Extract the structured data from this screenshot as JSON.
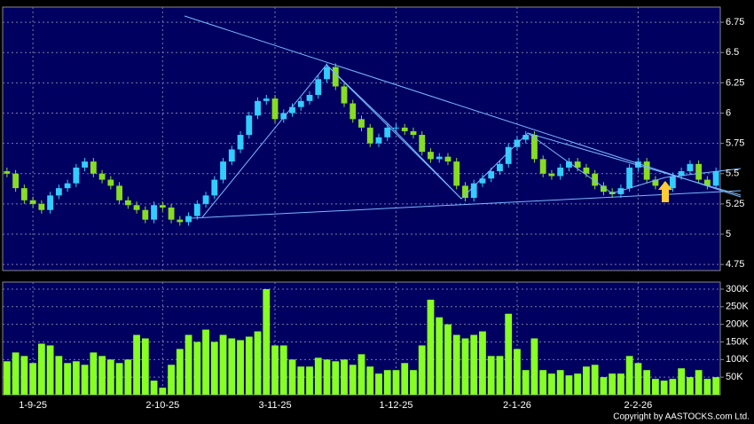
{
  "chart_data": [
    {
      "type": "candlestick",
      "up_color": "#33ccff",
      "down_color": "#88dd22",
      "grid": true,
      "open": [
        5.52,
        5.5,
        5.38,
        5.28,
        5.25,
        5.2,
        5.32,
        5.38,
        5.42,
        5.55,
        5.6,
        5.5,
        5.45,
        5.4,
        5.28,
        5.24,
        5.2,
        5.12,
        5.24,
        5.22,
        5.12,
        5.1,
        5.15,
        5.25,
        5.32,
        5.45,
        5.6,
        5.7,
        5.82,
        5.98,
        6.1,
        6.12,
        5.95,
        6.0,
        6.05,
        6.1,
        6.15,
        6.28,
        6.38,
        6.22,
        6.08,
        5.95,
        5.88,
        5.75,
        5.8,
        5.88,
        5.88,
        5.85,
        5.82,
        5.68,
        5.62,
        5.64,
        5.6,
        5.4,
        5.3,
        5.42,
        5.46,
        5.52,
        5.58,
        5.72,
        5.78,
        5.82,
        5.62,
        5.5,
        5.48,
        5.55,
        5.6,
        5.55,
        5.5,
        5.4,
        5.35,
        5.33,
        5.38,
        5.55,
        5.6,
        5.45,
        5.4,
        5.38,
        5.48,
        5.52,
        5.58,
        5.45,
        5.4
      ],
      "high": [
        5.55,
        5.53,
        5.41,
        5.31,
        5.28,
        5.35,
        5.41,
        5.45,
        5.58,
        5.63,
        5.63,
        5.53,
        5.48,
        5.43,
        5.31,
        5.27,
        5.23,
        5.27,
        5.27,
        5.25,
        5.15,
        5.18,
        5.28,
        5.35,
        5.48,
        5.63,
        5.73,
        5.85,
        6.01,
        6.13,
        6.15,
        6.15,
        6.03,
        6.08,
        6.13,
        6.18,
        6.31,
        6.41,
        6.41,
        6.25,
        6.11,
        5.98,
        5.91,
        5.83,
        5.91,
        5.91,
        5.91,
        5.88,
        5.85,
        5.71,
        5.67,
        5.67,
        5.63,
        5.43,
        5.45,
        5.49,
        5.55,
        5.61,
        5.75,
        5.81,
        5.85,
        5.85,
        5.65,
        5.53,
        5.58,
        5.63,
        5.63,
        5.58,
        5.53,
        5.43,
        5.38,
        5.41,
        5.58,
        5.63,
        5.63,
        5.48,
        5.43,
        5.51,
        5.55,
        5.61,
        5.61,
        5.48,
        5.55
      ],
      "low": [
        5.47,
        5.35,
        5.25,
        5.22,
        5.17,
        5.17,
        5.29,
        5.35,
        5.39,
        5.52,
        5.47,
        5.42,
        5.37,
        5.25,
        5.21,
        5.17,
        5.09,
        5.09,
        5.19,
        5.09,
        5.07,
        5.07,
        5.12,
        5.22,
        5.29,
        5.42,
        5.57,
        5.67,
        5.79,
        5.95,
        6.07,
        5.92,
        5.92,
        5.97,
        6.02,
        6.07,
        6.12,
        6.25,
        6.19,
        6.05,
        5.92,
        5.85,
        5.72,
        5.72,
        5.77,
        5.85,
        5.82,
        5.79,
        5.65,
        5.59,
        5.59,
        5.57,
        5.37,
        5.27,
        5.27,
        5.39,
        5.43,
        5.49,
        5.55,
        5.69,
        5.75,
        5.59,
        5.47,
        5.45,
        5.45,
        5.52,
        5.52,
        5.47,
        5.37,
        5.32,
        5.3,
        5.3,
        5.35,
        5.52,
        5.42,
        5.37,
        5.35,
        5.35,
        5.45,
        5.49,
        5.42,
        5.37,
        5.37
      ],
      "close": [
        5.5,
        5.38,
        5.28,
        5.25,
        5.2,
        5.32,
        5.38,
        5.42,
        5.55,
        5.6,
        5.5,
        5.45,
        5.4,
        5.28,
        5.24,
        5.2,
        5.12,
        5.24,
        5.22,
        5.12,
        5.1,
        5.15,
        5.25,
        5.32,
        5.45,
        5.6,
        5.7,
        5.82,
        5.98,
        6.1,
        6.12,
        5.95,
        6.0,
        6.05,
        6.1,
        6.15,
        6.28,
        6.38,
        6.22,
        6.08,
        5.95,
        5.88,
        5.75,
        5.8,
        5.88,
        5.88,
        5.85,
        5.82,
        5.68,
        5.62,
        5.64,
        5.6,
        5.4,
        5.3,
        5.42,
        5.46,
        5.52,
        5.58,
        5.72,
        5.78,
        5.82,
        5.62,
        5.5,
        5.48,
        5.55,
        5.6,
        5.55,
        5.5,
        5.4,
        5.35,
        5.33,
        5.38,
        5.55,
        5.6,
        5.45,
        5.4,
        5.38,
        5.48,
        5.52,
        5.58,
        5.45,
        5.4,
        5.52
      ],
      "ylim": [
        4.7,
        6.875
      ],
      "yticks": [
        4.75,
        5,
        5.25,
        5.5,
        5.75,
        6,
        6.25,
        6.5,
        6.75
      ]
    },
    {
      "type": "bar",
      "color": "#88ff22",
      "grid": true,
      "categories": [
        null,
        null,
        null,
        "1-9-25",
        null,
        null,
        null,
        null,
        null,
        null,
        null,
        null,
        null,
        null,
        null,
        null,
        null,
        null,
        "2-10-25",
        null,
        null,
        null,
        null,
        null,
        null,
        null,
        null,
        null,
        null,
        null,
        null,
        "3-11-25",
        null,
        null,
        null,
        null,
        null,
        null,
        null,
        null,
        null,
        null,
        null,
        null,
        null,
        "1-12-25",
        null,
        null,
        null,
        null,
        null,
        null,
        null,
        null,
        null,
        null,
        null,
        null,
        null,
        "2-1-26",
        null,
        null,
        null,
        null,
        null,
        null,
        null,
        null,
        null,
        null,
        null,
        null,
        null,
        "2-2-26",
        null,
        null,
        null,
        null,
        null,
        null,
        null,
        null,
        null
      ],
      "values": [
        95000,
        120000,
        110000,
        90000,
        145000,
        140000,
        110000,
        90000,
        95000,
        85000,
        120000,
        110000,
        100000,
        90000,
        100000,
        170000,
        160000,
        40000,
        20000,
        85000,
        130000,
        170000,
        150000,
        185000,
        150000,
        170000,
        160000,
        155000,
        165000,
        180000,
        300000,
        140000,
        140000,
        100000,
        80000,
        80000,
        105000,
        100000,
        95000,
        100000,
        85000,
        115000,
        80000,
        60000,
        70000,
        70000,
        90000,
        70000,
        140000,
        270000,
        220000,
        200000,
        170000,
        160000,
        170000,
        180000,
        110000,
        110000,
        230000,
        130000,
        70000,
        160000,
        70000,
        60000,
        70000,
        55000,
        60000,
        80000,
        85000,
        50000,
        60000,
        60000,
        110000,
        90000,
        70000,
        45000,
        40000,
        45000,
        75000,
        50000,
        70000,
        45000,
        50000
      ],
      "ylim": [
        0,
        320000
      ],
      "yticks": [
        {
          "value": 50000,
          "label": "50K"
        },
        {
          "value": 100000,
          "label": "100K"
        },
        {
          "value": 150000,
          "label": "150K"
        },
        {
          "value": 200000,
          "label": "200K"
        },
        {
          "value": 250000,
          "label": "250K"
        },
        {
          "value": 300000,
          "label": "300K"
        }
      ]
    }
  ],
  "copyright": "Copyright by AASTOCKS.com Ltd."
}
